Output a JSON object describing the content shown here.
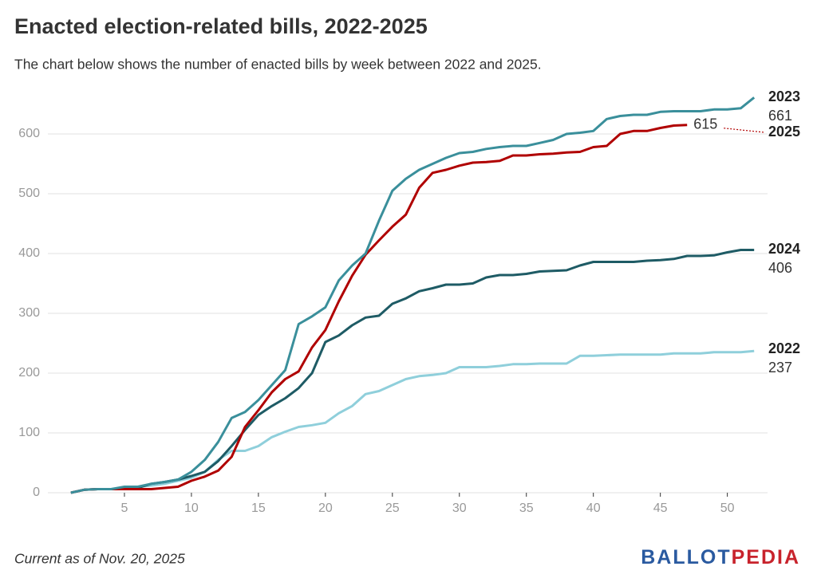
{
  "chart_data": {
    "type": "line",
    "title": "Enacted election-related bills, 2022-2025",
    "subtitle": "The chart below shows the number of enacted bills by week between 2022 and 2025.",
    "footnote": "Current as of Nov. 20, 2025",
    "logo": [
      "BALLOT",
      "PEDIA"
    ],
    "x": [
      1,
      2,
      3,
      4,
      5,
      6,
      7,
      8,
      9,
      10,
      11,
      12,
      13,
      14,
      15,
      16,
      17,
      18,
      19,
      20,
      21,
      22,
      23,
      24,
      25,
      26,
      27,
      28,
      29,
      30,
      31,
      32,
      33,
      34,
      35,
      36,
      37,
      38,
      39,
      40,
      41,
      42,
      43,
      44,
      45,
      46,
      47,
      48,
      49,
      50,
      51,
      52
    ],
    "xlim": [
      0,
      53
    ],
    "xticks": [
      5,
      10,
      15,
      20,
      25,
      30,
      35,
      40,
      45,
      50
    ],
    "ylim": [
      0,
      680
    ],
    "yticks": [
      0,
      100,
      200,
      300,
      400,
      500,
      600
    ],
    "grid": true,
    "series": [
      {
        "name": "2022",
        "color": "#8fcfdb",
        "values": [
          0,
          5,
          6,
          6,
          8,
          10,
          12,
          15,
          20,
          25,
          35,
          55,
          70,
          70,
          78,
          93,
          102,
          110,
          113,
          117,
          133,
          145,
          165,
          170,
          180,
          190,
          195,
          197,
          200,
          210,
          210,
          210,
          212,
          215,
          215,
          216,
          216,
          216,
          229,
          229,
          230,
          231,
          231,
          231,
          231,
          233,
          233,
          233,
          235,
          235,
          235,
          237
        ]
      },
      {
        "name": "2023",
        "color": "#3a8f9b",
        "values": [
          0,
          5,
          6,
          6,
          10,
          10,
          15,
          18,
          22,
          35,
          55,
          85,
          125,
          135,
          155,
          180,
          205,
          282,
          295,
          310,
          355,
          380,
          400,
          455,
          505,
          525,
          540,
          550,
          560,
          568,
          570,
          575,
          578,
          580,
          580,
          585,
          590,
          600,
          602,
          605,
          625,
          630,
          632,
          632,
          637,
          638,
          638,
          638,
          641,
          641,
          643,
          661
        ]
      },
      {
        "name": "2024",
        "color": "#1e5b65",
        "values": [
          0,
          5,
          6,
          6,
          6,
          8,
          15,
          18,
          22,
          28,
          35,
          53,
          78,
          105,
          130,
          145,
          158,
          175,
          200,
          252,
          263,
          280,
          293,
          296,
          316,
          325,
          337,
          342,
          348,
          348,
          350,
          360,
          364,
          364,
          366,
          370,
          371,
          372,
          380,
          386,
          386,
          386,
          386,
          388,
          389,
          391,
          396,
          396,
          397,
          402,
          406,
          406
        ]
      },
      {
        "name": "2025",
        "color": "#b00000",
        "values": [
          0,
          5,
          6,
          6,
          6,
          6,
          6,
          8,
          10,
          20,
          27,
          37,
          60,
          110,
          138,
          168,
          190,
          203,
          243,
          272,
          320,
          363,
          398,
          422,
          445,
          465,
          510,
          535,
          540,
          547,
          552,
          553,
          555,
          564,
          564,
          566,
          567,
          569,
          570,
          578,
          580,
          600,
          605,
          605,
          610,
          614,
          615,
          null,
          null,
          null,
          null,
          null
        ]
      }
    ]
  }
}
